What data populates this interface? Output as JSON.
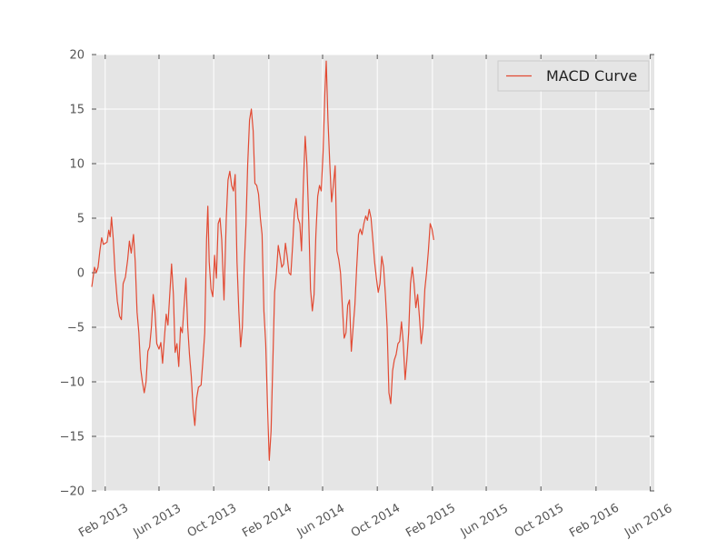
{
  "chart_data": {
    "type": "line",
    "x_start": "2013-01-02",
    "x_end": "2016-06-10",
    "ylim": [
      -20,
      20
    ],
    "y_ticks": [
      -20,
      -15,
      -10,
      -5,
      0,
      5,
      10,
      15,
      20
    ],
    "y_tick_labels": [
      "−20",
      "−15",
      "−10",
      "−5",
      "0",
      "5",
      "10",
      "15",
      "20"
    ],
    "x_ticks": [
      {
        "date": "2013-02-01",
        "label": "Feb 2013"
      },
      {
        "date": "2013-06-01",
        "label": "Jun 2013"
      },
      {
        "date": "2013-10-01",
        "label": "Oct 2013"
      },
      {
        "date": "2014-02-01",
        "label": "Feb 2014"
      },
      {
        "date": "2014-06-01",
        "label": "Jun 2014"
      },
      {
        "date": "2014-10-01",
        "label": "Oct 2014"
      },
      {
        "date": "2015-02-01",
        "label": "Feb 2015"
      },
      {
        "date": "2015-06-01",
        "label": "Jun 2015"
      },
      {
        "date": "2015-10-01",
        "label": "Oct 2015"
      },
      {
        "date": "2016-02-01",
        "label": "Feb 2016"
      },
      {
        "date": "2016-06-01",
        "label": "Jun 2016"
      }
    ],
    "grid": true,
    "legend_position": "top-right",
    "series": [
      {
        "name": "MACD Curve",
        "color": "#e24a33",
        "points": [
          [
            "2013-01-02",
            -1.3
          ],
          [
            "2013-01-08",
            0.5
          ],
          [
            "2013-01-12",
            0.0
          ],
          [
            "2013-01-16",
            0.5
          ],
          [
            "2013-01-20",
            2.0
          ],
          [
            "2013-01-24",
            3.2
          ],
          [
            "2013-01-28",
            2.6
          ],
          [
            "2013-02-05",
            2.8
          ],
          [
            "2013-02-09",
            3.9
          ],
          [
            "2013-02-12",
            3.3
          ],
          [
            "2013-02-15",
            5.1
          ],
          [
            "2013-02-19",
            3.0
          ],
          [
            "2013-02-23",
            0.0
          ],
          [
            "2013-02-28",
            -2.6
          ],
          [
            "2013-03-05",
            -4.0
          ],
          [
            "2013-03-09",
            -4.3
          ],
          [
            "2013-03-13",
            -1.0
          ],
          [
            "2013-03-18",
            -0.4
          ],
          [
            "2013-03-23",
            1.2
          ],
          [
            "2013-03-27",
            2.9
          ],
          [
            "2013-03-31",
            1.8
          ],
          [
            "2013-04-05",
            3.5
          ],
          [
            "2013-04-09",
            1.0
          ],
          [
            "2013-04-13",
            -3.6
          ],
          [
            "2013-04-17",
            -5.5
          ],
          [
            "2013-04-21",
            -8.8
          ],
          [
            "2013-04-25",
            -10.0
          ],
          [
            "2013-04-29",
            -11.0
          ],
          [
            "2013-05-03",
            -10.0
          ],
          [
            "2013-05-07",
            -7.2
          ],
          [
            "2013-05-11",
            -6.8
          ],
          [
            "2013-05-15",
            -5.0
          ],
          [
            "2013-05-19",
            -2.0
          ],
          [
            "2013-05-23",
            -3.5
          ],
          [
            "2013-05-27",
            -6.5
          ],
          [
            "2013-06-01",
            -7.0
          ],
          [
            "2013-06-05",
            -6.4
          ],
          [
            "2013-06-09",
            -8.3
          ],
          [
            "2013-06-13",
            -6.0
          ],
          [
            "2013-06-17",
            -3.8
          ],
          [
            "2013-06-21",
            -4.8
          ],
          [
            "2013-06-25",
            -2.0
          ],
          [
            "2013-06-29",
            0.8
          ],
          [
            "2013-07-03",
            -2.0
          ],
          [
            "2013-07-07",
            -7.3
          ],
          [
            "2013-07-11",
            -6.5
          ],
          [
            "2013-07-15",
            -8.6
          ],
          [
            "2013-07-19",
            -5.0
          ],
          [
            "2013-07-23",
            -5.5
          ],
          [
            "2013-07-27",
            -3.0
          ],
          [
            "2013-07-31",
            -0.5
          ],
          [
            "2013-08-04",
            -5.0
          ],
          [
            "2013-08-08",
            -7.5
          ],
          [
            "2013-08-12",
            -9.5
          ],
          [
            "2013-08-16",
            -12.5
          ],
          [
            "2013-08-20",
            -14.0
          ],
          [
            "2013-08-24",
            -11.5
          ],
          [
            "2013-08-28",
            -10.5
          ],
          [
            "2013-09-03",
            -10.3
          ],
          [
            "2013-09-07",
            -8.0
          ],
          [
            "2013-09-11",
            -5.5
          ],
          [
            "2013-09-15",
            3.0
          ],
          [
            "2013-09-18",
            6.1
          ],
          [
            "2013-09-21",
            1.0
          ],
          [
            "2013-09-25",
            -1.5
          ],
          [
            "2013-09-29",
            -2.2
          ],
          [
            "2013-10-03",
            1.6
          ],
          [
            "2013-10-07",
            -0.5
          ],
          [
            "2013-10-11",
            4.5
          ],
          [
            "2013-10-15",
            5.0
          ],
          [
            "2013-10-19",
            3.0
          ],
          [
            "2013-10-24",
            -2.5
          ],
          [
            "2013-10-29",
            5.0
          ],
          [
            "2013-11-02",
            8.5
          ],
          [
            "2013-11-06",
            9.3
          ],
          [
            "2013-11-10",
            8.0
          ],
          [
            "2013-11-14",
            7.5
          ],
          [
            "2013-11-18",
            9.0
          ],
          [
            "2013-11-22",
            1.0
          ],
          [
            "2013-11-26",
            -3.5
          ],
          [
            "2013-11-30",
            -6.8
          ],
          [
            "2013-12-04",
            -5.0
          ],
          [
            "2013-12-08",
            0.5
          ],
          [
            "2013-12-12",
            4.5
          ],
          [
            "2013-12-16",
            10.0
          ],
          [
            "2013-12-20",
            14.0
          ],
          [
            "2013-12-24",
            15.0
          ],
          [
            "2013-12-28",
            13.0
          ],
          [
            "2014-01-01",
            8.2
          ],
          [
            "2014-01-05",
            8.0
          ],
          [
            "2014-01-09",
            7.2
          ],
          [
            "2014-01-13",
            5.0
          ],
          [
            "2014-01-17",
            3.5
          ],
          [
            "2014-01-21",
            -3.5
          ],
          [
            "2014-01-25",
            -6.5
          ],
          [
            "2014-01-29",
            -12.0
          ],
          [
            "2014-02-02",
            -17.2
          ],
          [
            "2014-02-06",
            -14.5
          ],
          [
            "2014-02-10",
            -8.0
          ],
          [
            "2014-02-14",
            -1.8
          ],
          [
            "2014-02-18",
            0.0
          ],
          [
            "2014-02-22",
            2.5
          ],
          [
            "2014-02-26",
            1.5
          ],
          [
            "2014-03-02",
            0.5
          ],
          [
            "2014-03-06",
            0.8
          ],
          [
            "2014-03-10",
            2.7
          ],
          [
            "2014-03-14",
            1.5
          ],
          [
            "2014-03-18",
            0.0
          ],
          [
            "2014-03-22",
            -0.2
          ],
          [
            "2014-03-26",
            2.5
          ],
          [
            "2014-03-30",
            5.5
          ],
          [
            "2014-04-03",
            6.8
          ],
          [
            "2014-04-07",
            5.0
          ],
          [
            "2014-04-11",
            4.5
          ],
          [
            "2014-04-15",
            2.0
          ],
          [
            "2014-04-19",
            8.0
          ],
          [
            "2014-04-23",
            12.5
          ],
          [
            "2014-04-27",
            10.0
          ],
          [
            "2014-05-01",
            5.0
          ],
          [
            "2014-05-05",
            -1.5
          ],
          [
            "2014-05-09",
            -3.5
          ],
          [
            "2014-05-13",
            -2.0
          ],
          [
            "2014-05-17",
            3.5
          ],
          [
            "2014-05-21",
            7.0
          ],
          [
            "2014-05-25",
            8.0
          ],
          [
            "2014-05-29",
            7.5
          ],
          [
            "2014-06-02",
            11.0
          ],
          [
            "2014-06-06",
            16.5
          ],
          [
            "2014-06-09",
            19.4
          ],
          [
            "2014-06-13",
            14.0
          ],
          [
            "2014-06-17",
            10.0
          ],
          [
            "2014-06-21",
            6.5
          ],
          [
            "2014-06-25",
            8.0
          ],
          [
            "2014-06-29",
            9.8
          ],
          [
            "2014-07-03",
            2.0
          ],
          [
            "2014-07-07",
            1.2
          ],
          [
            "2014-07-11",
            0.0
          ],
          [
            "2014-07-15",
            -3.0
          ],
          [
            "2014-07-19",
            -6.0
          ],
          [
            "2014-07-23",
            -5.5
          ],
          [
            "2014-07-27",
            -3.0
          ],
          [
            "2014-07-31",
            -2.5
          ],
          [
            "2014-08-04",
            -7.2
          ],
          [
            "2014-08-08",
            -5.0
          ],
          [
            "2014-08-12",
            -3.0
          ],
          [
            "2014-08-16",
            0.5
          ],
          [
            "2014-08-20",
            3.5
          ],
          [
            "2014-08-24",
            4.0
          ],
          [
            "2014-08-28",
            3.5
          ],
          [
            "2014-09-01",
            4.5
          ],
          [
            "2014-09-05",
            5.2
          ],
          [
            "2014-09-09",
            4.8
          ],
          [
            "2014-09-13",
            5.8
          ],
          [
            "2014-09-17",
            5.0
          ],
          [
            "2014-09-21",
            3.0
          ],
          [
            "2014-09-25",
            1.0
          ],
          [
            "2014-09-29",
            -0.5
          ],
          [
            "2014-10-03",
            -1.8
          ],
          [
            "2014-10-07",
            -1.0
          ],
          [
            "2014-10-11",
            1.5
          ],
          [
            "2014-10-15",
            0.5
          ],
          [
            "2014-10-19",
            -2.0
          ],
          [
            "2014-10-23",
            -5.0
          ],
          [
            "2014-10-27",
            -11.0
          ],
          [
            "2014-10-31",
            -12.0
          ],
          [
            "2014-11-04",
            -9.0
          ],
          [
            "2014-11-08",
            -8.0
          ],
          [
            "2014-11-12",
            -7.5
          ],
          [
            "2014-11-16",
            -6.5
          ],
          [
            "2014-11-20",
            -6.3
          ],
          [
            "2014-11-24",
            -4.5
          ],
          [
            "2014-11-28",
            -6.5
          ],
          [
            "2014-12-02",
            -9.8
          ],
          [
            "2014-12-06",
            -8.0
          ],
          [
            "2014-12-10",
            -5.5
          ],
          [
            "2014-12-14",
            -1.0
          ],
          [
            "2014-12-18",
            0.5
          ],
          [
            "2014-12-22",
            -1.0
          ],
          [
            "2014-12-26",
            -3.2
          ],
          [
            "2014-12-30",
            -2.0
          ],
          [
            "2015-01-03",
            -4.0
          ],
          [
            "2015-01-07",
            -6.5
          ],
          [
            "2015-01-11",
            -5.0
          ],
          [
            "2015-01-15",
            -1.5
          ],
          [
            "2015-01-19",
            0.0
          ],
          [
            "2015-01-23",
            2.0
          ],
          [
            "2015-01-27",
            4.5
          ],
          [
            "2015-01-31",
            4.0
          ],
          [
            "2015-02-04",
            3.0
          ]
        ]
      }
    ]
  }
}
